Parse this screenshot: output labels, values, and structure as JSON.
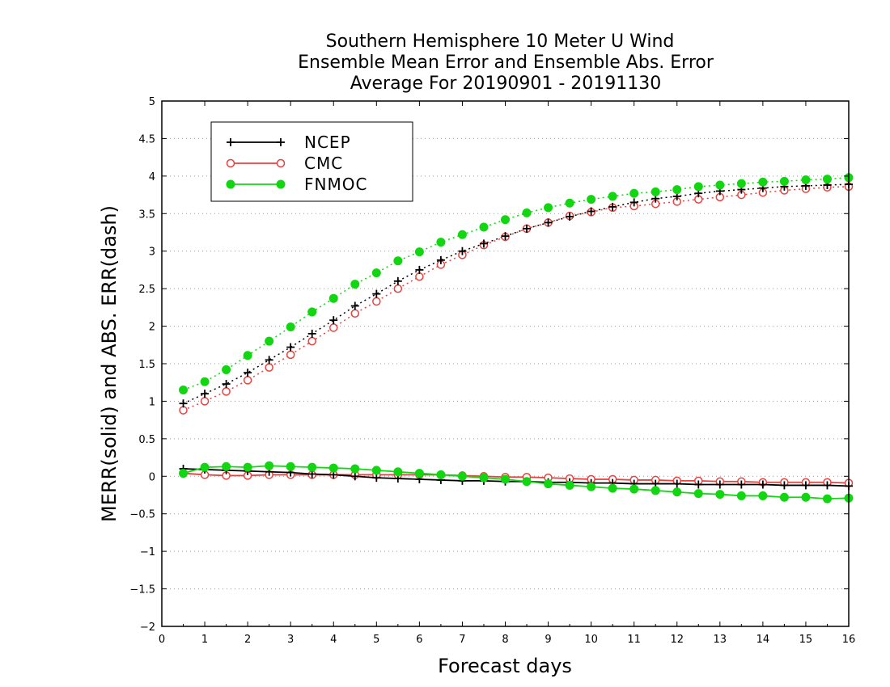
{
  "chart_data": {
    "type": "line",
    "title": [
      "Southern Hemisphere 10 Meter U Wind",
      "Ensemble Mean Error and Ensemble Abs. Error",
      "Average For 20190901 - 20191130"
    ],
    "xlabel": "Forecast days",
    "ylabel": "MERR(solid) and ABS. ERR(dash)",
    "xlim": [
      0,
      16
    ],
    "ylim": [
      -2,
      5
    ],
    "x_ticks": [
      "0",
      "1",
      "2",
      "3",
      "4",
      "5",
      "6",
      "7",
      "8",
      "9",
      "10",
      "11",
      "12",
      "13",
      "14",
      "15",
      "16"
    ],
    "y_ticks": [
      "5",
      "4.5",
      "4",
      "3.5",
      "3",
      "2.5",
      "2",
      "1.5",
      "1",
      "0.5",
      "0",
      "−0.5",
      "−1",
      "−1.5",
      "−2"
    ],
    "y_tick_values": [
      5,
      4.5,
      4,
      3.5,
      3,
      2.5,
      2,
      1.5,
      1,
      0.5,
      0,
      -0.5,
      -1,
      -1.5,
      -2
    ],
    "grid": "horizontal dotted",
    "legend_position": "top-left",
    "x": [
      0.5,
      1,
      1.5,
      2,
      2.5,
      3,
      3.5,
      4,
      4.5,
      5,
      5.5,
      6,
      6.5,
      7,
      7.5,
      8,
      8.5,
      9,
      9.5,
      10,
      10.5,
      11,
      11.5,
      12,
      12.5,
      13,
      13.5,
      14,
      14.5,
      15,
      15.5,
      16
    ],
    "series": [
      {
        "name": "NCEP",
        "color": "#000000",
        "marker": "plus",
        "abs_err": [
          0.97,
          1.1,
          1.23,
          1.38,
          1.55,
          1.72,
          1.9,
          2.08,
          2.27,
          2.43,
          2.6,
          2.75,
          2.88,
          3.0,
          3.1,
          3.2,
          3.3,
          3.38,
          3.46,
          3.53,
          3.59,
          3.65,
          3.7,
          3.73,
          3.77,
          3.8,
          3.82,
          3.84,
          3.86,
          3.87,
          3.88,
          3.89
        ],
        "mean_err": [
          0.1,
          0.09,
          0.08,
          0.07,
          0.06,
          0.05,
          0.03,
          0.02,
          0.0,
          -0.02,
          -0.03,
          -0.04,
          -0.05,
          -0.06,
          -0.06,
          -0.07,
          -0.07,
          -0.08,
          -0.08,
          -0.09,
          -0.09,
          -0.1,
          -0.1,
          -0.1,
          -0.11,
          -0.11,
          -0.11,
          -0.11,
          -0.12,
          -0.12,
          -0.12,
          -0.13
        ]
      },
      {
        "name": "CMC",
        "color": "#e8413f",
        "marker": "open-circle",
        "abs_err": [
          0.88,
          1.0,
          1.13,
          1.28,
          1.45,
          1.62,
          1.8,
          1.98,
          2.17,
          2.33,
          2.5,
          2.66,
          2.82,
          2.95,
          3.08,
          3.19,
          3.3,
          3.38,
          3.47,
          3.52,
          3.58,
          3.6,
          3.63,
          3.66,
          3.69,
          3.72,
          3.75,
          3.78,
          3.81,
          3.83,
          3.85,
          3.86
        ],
        "mean_err": [
          0.04,
          0.02,
          0.01,
          0.01,
          0.02,
          0.02,
          0.02,
          0.02,
          0.02,
          0.02,
          0.02,
          0.02,
          0.02,
          0.01,
          0.0,
          -0.01,
          -0.01,
          -0.02,
          -0.03,
          -0.04,
          -0.04,
          -0.05,
          -0.05,
          -0.06,
          -0.06,
          -0.07,
          -0.07,
          -0.08,
          -0.08,
          -0.08,
          -0.08,
          -0.09
        ]
      },
      {
        "name": "FNMOC",
        "color": "#11d611",
        "marker": "filled-circle",
        "abs_err": [
          1.15,
          1.26,
          1.42,
          1.61,
          1.8,
          1.99,
          2.19,
          2.37,
          2.56,
          2.71,
          2.87,
          2.99,
          3.12,
          3.22,
          3.32,
          3.42,
          3.51,
          3.58,
          3.64,
          3.69,
          3.73,
          3.77,
          3.79,
          3.82,
          3.86,
          3.88,
          3.9,
          3.92,
          3.93,
          3.95,
          3.96,
          3.98
        ],
        "mean_err": [
          0.04,
          0.12,
          0.13,
          0.12,
          0.14,
          0.13,
          0.12,
          0.11,
          0.1,
          0.08,
          0.06,
          0.04,
          0.02,
          0.0,
          -0.02,
          -0.04,
          -0.07,
          -0.1,
          -0.12,
          -0.14,
          -0.16,
          -0.17,
          -0.19,
          -0.21,
          -0.23,
          -0.24,
          -0.26,
          -0.26,
          -0.28,
          -0.28,
          -0.3,
          -0.29
        ]
      }
    ]
  }
}
